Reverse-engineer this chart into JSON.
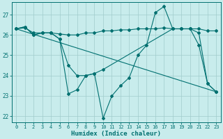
{
  "xlabel": "Humidex (Indice chaleur)",
  "xlim": [
    -0.5,
    23.5
  ],
  "ylim": [
    21.7,
    27.6
  ],
  "yticks": [
    22,
    23,
    24,
    25,
    26,
    27
  ],
  "xticks": [
    0,
    1,
    2,
    3,
    4,
    5,
    6,
    7,
    8,
    9,
    10,
    11,
    12,
    13,
    14,
    15,
    16,
    17,
    18,
    19,
    20,
    21,
    22,
    23
  ],
  "bg_color": "#c8ecec",
  "grid_color": "#a0cccc",
  "line_color": "#007070",
  "series": [
    {
      "x": [
        0,
        1,
        2,
        3,
        4,
        5,
        6,
        7,
        8,
        9,
        10,
        11,
        12,
        13,
        14,
        15,
        16,
        17,
        18,
        19,
        20,
        21,
        22,
        23
      ],
      "y": [
        26.3,
        26.4,
        26.0,
        26.1,
        26.1,
        25.8,
        23.1,
        23.3,
        24.0,
        24.1,
        21.9,
        23.0,
        23.5,
        23.9,
        25.0,
        25.5,
        27.1,
        27.4,
        26.3,
        26.3,
        26.3,
        25.5,
        23.6,
        23.2
      ]
    },
    {
      "x": [
        0,
        1,
        2,
        3,
        4,
        5,
        6,
        7,
        8,
        9,
        10,
        18,
        19,
        20,
        21,
        22,
        23
      ],
      "y": [
        26.3,
        26.4,
        26.0,
        26.1,
        26.1,
        25.8,
        24.5,
        24.0,
        24.0,
        24.1,
        24.3,
        26.3,
        26.3,
        26.3,
        26.1,
        23.6,
        23.2
      ]
    },
    {
      "x": [
        0,
        23
      ],
      "y": [
        26.3,
        23.2
      ]
    },
    {
      "x": [
        0,
        1,
        2,
        3,
        4,
        5,
        6,
        7,
        8,
        9,
        10,
        11,
        12,
        13,
        14,
        15,
        16,
        17,
        18,
        19,
        20,
        21,
        22,
        23
      ],
      "y": [
        26.3,
        26.35,
        26.1,
        26.1,
        26.1,
        26.05,
        26.0,
        26.0,
        26.1,
        26.1,
        26.2,
        26.2,
        26.25,
        26.25,
        26.3,
        26.3,
        26.3,
        26.35,
        26.3,
        26.3,
        26.3,
        26.3,
        26.2,
        26.2
      ]
    }
  ]
}
